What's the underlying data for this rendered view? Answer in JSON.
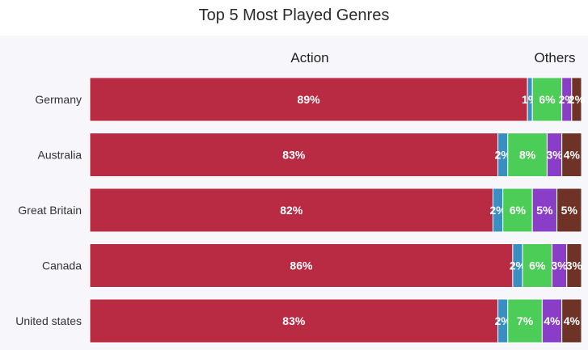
{
  "chart_data": {
    "type": "bar",
    "orientation": "horizontal",
    "stacked": true,
    "title": "Top 5 Most Played Genres",
    "annotations": [
      "Action",
      "Others"
    ],
    "categories": [
      "Germany",
      "Australia",
      "Great Britain",
      "Canada",
      "United states"
    ],
    "series": [
      {
        "color": "#b92a43",
        "values": [
          89,
          83,
          82,
          86,
          83
        ]
      },
      {
        "color": "#3a8fc0",
        "values": [
          1,
          2,
          2,
          2,
          2
        ]
      },
      {
        "color": "#4ccd58",
        "values": [
          6,
          8,
          6,
          6,
          7
        ]
      },
      {
        "color": "#8a3ec8",
        "values": [
          2,
          3,
          5,
          3,
          4
        ]
      },
      {
        "color": "#6e3227",
        "values": [
          2,
          4,
          5,
          3,
          4
        ]
      }
    ],
    "value_labels": [
      [
        "89%",
        "1%",
        "6%",
        "2%",
        "2%"
      ],
      [
        "83%",
        "2%",
        "8%",
        "3%",
        "4%"
      ],
      [
        "82%",
        "2%",
        "6%",
        "5%",
        "5%"
      ],
      [
        "86%",
        "2%",
        "6%",
        "3%",
        "3%"
      ],
      [
        "83%",
        "2%",
        "7%",
        "4%",
        "4%"
      ]
    ],
    "xlim": [
      0,
      100
    ],
    "grid": false,
    "legend": "none"
  }
}
